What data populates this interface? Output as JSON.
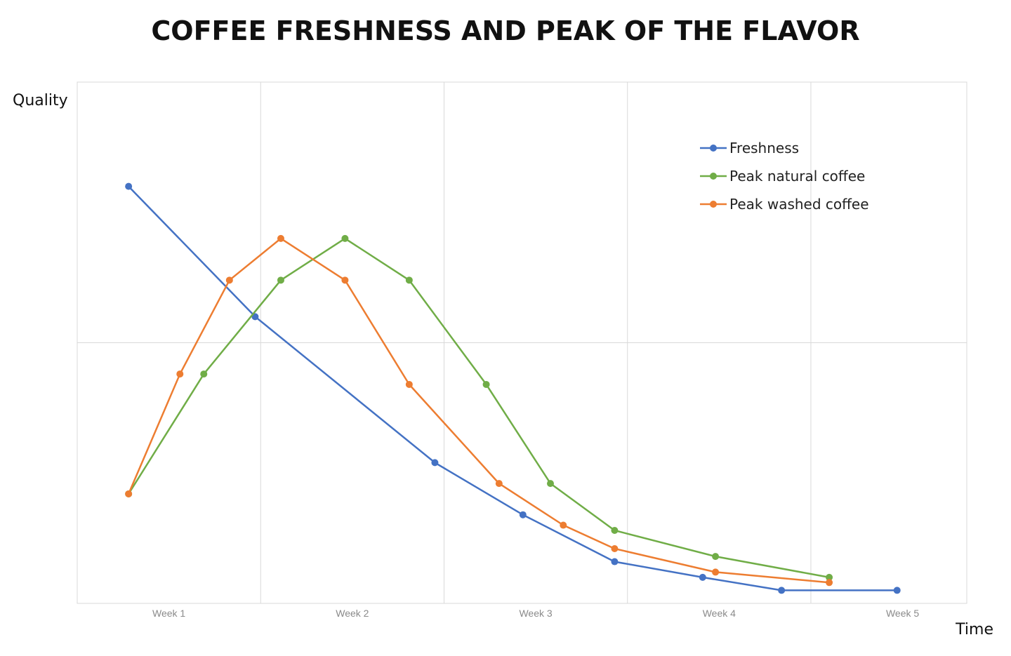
{
  "chart_data": {
    "type": "line",
    "title": "COFFEE FRESHNESS AND PEAK OF THE FLAVOR",
    "xlabel": "Time",
    "ylabel": "Quality",
    "categories": [
      "Week 1",
      "Week 2",
      "Week 3",
      "Week 4",
      "Week 5"
    ],
    "xlim": [
      0.5,
      5.35
    ],
    "ylim": [
      0,
      100
    ],
    "grid": true,
    "legend": "top-right",
    "series": [
      {
        "name": "Freshness",
        "color": "#4472C4",
        "points": [
          {
            "x": 0.78,
            "y": 80
          },
          {
            "x": 1.47,
            "y": 55
          },
          {
            "x": 2.45,
            "y": 27
          },
          {
            "x": 2.93,
            "y": 17
          },
          {
            "x": 3.43,
            "y": 8
          },
          {
            "x": 3.91,
            "y": 5
          },
          {
            "x": 4.34,
            "y": 2.5
          },
          {
            "x": 4.97,
            "y": 2.5
          }
        ]
      },
      {
        "name": "Peak natural coffee",
        "color": "#70AD47",
        "points": [
          {
            "x": 0.78,
            "y": 21
          },
          {
            "x": 1.19,
            "y": 44
          },
          {
            "x": 1.61,
            "y": 62
          },
          {
            "x": 1.96,
            "y": 70
          },
          {
            "x": 2.31,
            "y": 62
          },
          {
            "x": 2.73,
            "y": 42
          },
          {
            "x": 3.08,
            "y": 23
          },
          {
            "x": 3.43,
            "y": 14
          },
          {
            "x": 3.98,
            "y": 9
          },
          {
            "x": 4.6,
            "y": 5
          }
        ]
      },
      {
        "name": "Peak washed coffee",
        "color": "#ED7D31",
        "points": [
          {
            "x": 0.78,
            "y": 21
          },
          {
            "x": 1.06,
            "y": 44
          },
          {
            "x": 1.33,
            "y": 62
          },
          {
            "x": 1.61,
            "y": 70
          },
          {
            "x": 1.96,
            "y": 62
          },
          {
            "x": 2.31,
            "y": 42
          },
          {
            "x": 2.8,
            "y": 23
          },
          {
            "x": 3.15,
            "y": 15
          },
          {
            "x": 3.43,
            "y": 10.5
          },
          {
            "x": 3.98,
            "y": 6
          },
          {
            "x": 4.6,
            "y": 4
          }
        ]
      }
    ]
  }
}
